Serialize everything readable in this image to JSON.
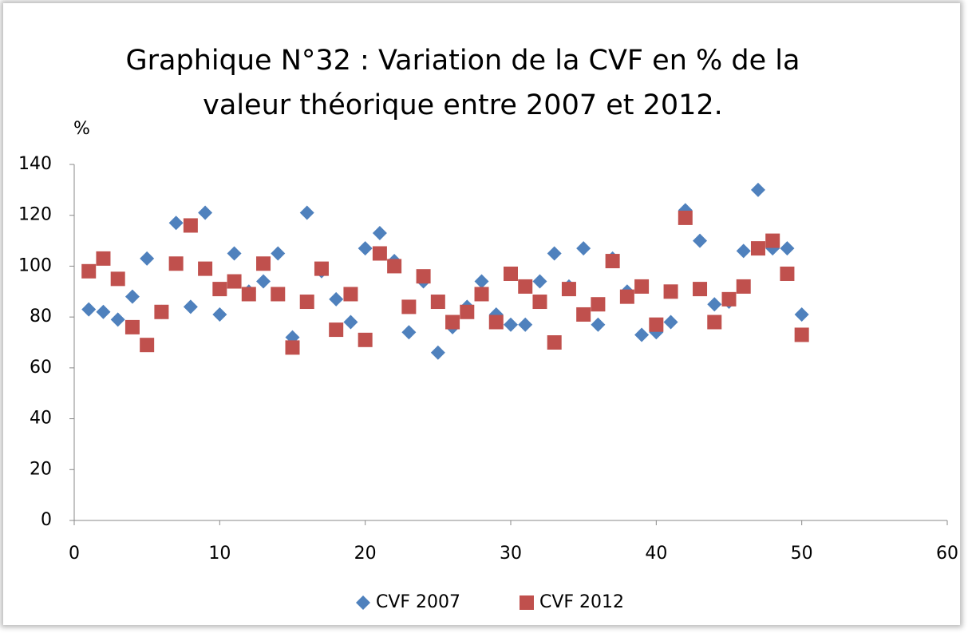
{
  "chart_data": {
    "type": "scatter",
    "title": "Graphique N°32 : Variation de la CVF en % de la valeur théorique entre 2007 et 2012.",
    "ylabel": "%",
    "x": [
      1,
      2,
      3,
      4,
      5,
      6,
      7,
      8,
      9,
      10,
      11,
      12,
      13,
      14,
      15,
      16,
      17,
      18,
      19,
      20,
      21,
      22,
      23,
      24,
      25,
      26,
      27,
      28,
      29,
      30,
      31,
      32,
      33,
      34,
      35,
      36,
      37,
      38,
      39,
      40,
      41,
      42,
      43,
      44,
      45,
      46,
      47,
      48,
      49,
      50
    ],
    "series": [
      {
        "name": "CVF 2007",
        "color": "#4f81bd",
        "marker": "diamond",
        "values": [
          83,
          82,
          79,
          88,
          103,
          82,
          117,
          84,
          121,
          81,
          105,
          90,
          94,
          105,
          72,
          121,
          98,
          87,
          78,
          107,
          113,
          102,
          74,
          94,
          66,
          76,
          84,
          94,
          81,
          77,
          77,
          94,
          105,
          92,
          107,
          77,
          103,
          90,
          73,
          74,
          78,
          122,
          110,
          85,
          86,
          106,
          130,
          107,
          107,
          81
        ]
      },
      {
        "name": "CVF 2012",
        "color": "#c0504d",
        "marker": "square",
        "values": [
          98,
          103,
          95,
          76,
          69,
          82,
          101,
          116,
          99,
          91,
          94,
          89,
          101,
          89,
          68,
          86,
          99,
          75,
          89,
          71,
          105,
          100,
          84,
          96,
          86,
          78,
          82,
          89,
          78,
          97,
          92,
          86,
          70,
          91,
          81,
          85,
          102,
          88,
          92,
          77,
          90,
          119,
          91,
          78,
          87,
          92,
          107,
          110,
          97,
          73
        ]
      }
    ],
    "xlim": [
      0,
      60
    ],
    "xticks": [
      0,
      10,
      20,
      30,
      40,
      50,
      60
    ],
    "ylim": [
      0,
      140
    ],
    "yticks": [
      0,
      20,
      40,
      60,
      80,
      100,
      120,
      140
    ],
    "legend": "bottom"
  }
}
